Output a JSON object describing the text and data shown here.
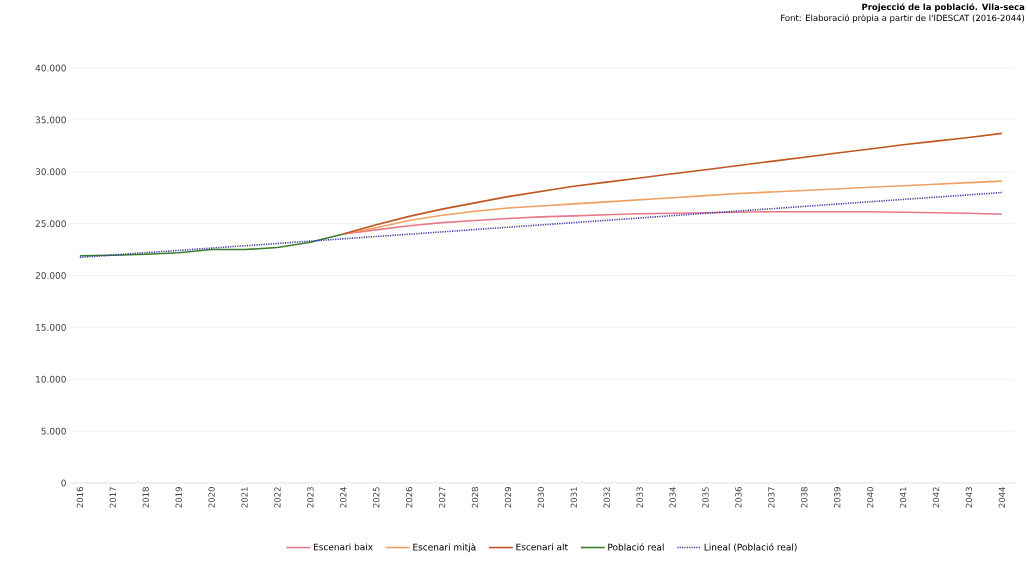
{
  "chart_data": {
    "type": "line",
    "title": "Projecció de la població. Vila-seca",
    "annotations": [
      "Font: Elaboració pròpia a partir de l'IDESCAT (2016-2044)"
    ],
    "x": [
      2016,
      2017,
      2018,
      2019,
      2020,
      2021,
      2022,
      2023,
      2024,
      2025,
      2026,
      2027,
      2028,
      2029,
      2030,
      2031,
      2032,
      2033,
      2034,
      2035,
      2036,
      2037,
      2038,
      2039,
      2040,
      2041,
      2042,
      2043,
      2044
    ],
    "xlim": [
      2015.7,
      2044.4
    ],
    "xticks": [
      2016,
      2017,
      2018,
      2019,
      2020,
      2021,
      2022,
      2023,
      2024,
      2025,
      2026,
      2027,
      2028,
      2029,
      2030,
      2031,
      2032,
      2033,
      2034,
      2035,
      2036,
      2037,
      2038,
      2039,
      2040,
      2041,
      2042,
      2043,
      2044
    ],
    "ylim": [
      0,
      40000
    ],
    "yticks": [
      {
        "value": 0,
        "label": "0"
      },
      {
        "value": 5000,
        "label": "5.000"
      },
      {
        "value": 10000,
        "label": "10.000"
      },
      {
        "value": 15000,
        "label": "15.000"
      },
      {
        "value": 20000,
        "label": "20.000"
      },
      {
        "value": 25000,
        "label": "25.000"
      },
      {
        "value": 30000,
        "label": "30.000"
      },
      {
        "value": 35000,
        "label": "35.000"
      },
      {
        "value": 40000,
        "label": "40.000"
      }
    ],
    "grid": "y",
    "legend": "bottom",
    "series": [
      {
        "name": "Escenari baix",
        "color": "#e8788a",
        "values": [
          null,
          null,
          null,
          null,
          null,
          null,
          null,
          null,
          24000,
          24400,
          24800,
          25100,
          25300,
          25500,
          25650,
          25750,
          25850,
          25950,
          26000,
          26050,
          26100,
          26150,
          26150,
          26150,
          26150,
          26100,
          26050,
          26000,
          25900
        ]
      },
      {
        "name": "Escenari mitjà",
        "color": "#f0a060",
        "values": [
          null,
          null,
          null,
          null,
          null,
          null,
          null,
          null,
          24000,
          24600,
          25300,
          25800,
          26200,
          26500,
          26700,
          26900,
          27100,
          27300,
          27500,
          27700,
          27900,
          28050,
          28200,
          28350,
          28500,
          28650,
          28800,
          28950,
          29100
        ]
      },
      {
        "name": "Escenari alt",
        "color": "#c0561e",
        "values": [
          null,
          null,
          null,
          null,
          null,
          null,
          null,
          null,
          24000,
          24900,
          25700,
          26400,
          27000,
          27600,
          28100,
          28600,
          29000,
          29400,
          29800,
          30200,
          30600,
          31000,
          31400,
          31800,
          32200,
          32600,
          32950,
          33300,
          33700
        ]
      },
      {
        "name": "Població real",
        "color": "#3a7d2a",
        "values": [
          21900,
          21950,
          22050,
          22200,
          22500,
          22500,
          22700,
          23200,
          24000,
          null,
          null,
          null,
          null,
          null,
          null,
          null,
          null,
          null,
          null,
          null,
          null,
          null,
          null,
          null,
          null,
          null,
          null,
          null,
          null
        ]
      },
      {
        "name": "Lineal (Població real)",
        "type": "line",
        "line_style": "dotted",
        "color": "#3a3a9a",
        "x": [
          2016,
          2044
        ],
        "values": [
          21750,
          28000
        ]
      }
    ]
  }
}
